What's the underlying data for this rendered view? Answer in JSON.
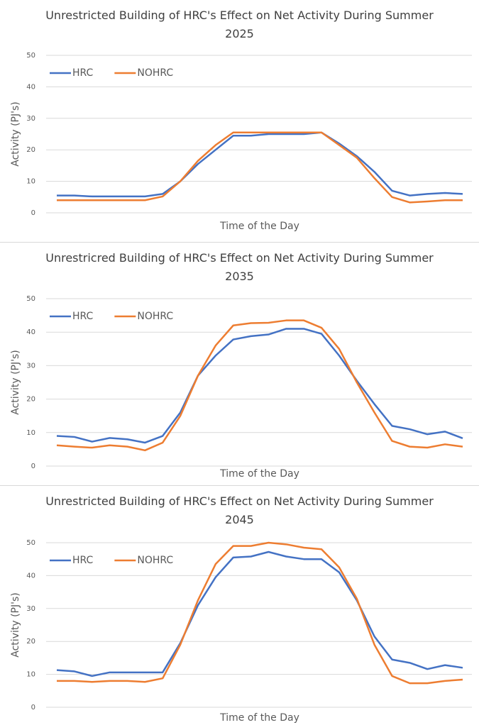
{
  "chart_data": [
    {
      "type": "line",
      "title": "Unrestricted Building of HRC's Effect on Net Activity During Summer 2025",
      "x_label": "Time of the Day",
      "y_label": "Activity  (PJ's)",
      "ylim": [
        0,
        50
      ],
      "yticks": [
        0,
        10,
        20,
        30,
        40,
        50
      ],
      "grid": true,
      "legend": "top-left",
      "series": [
        {
          "name": "HRC",
          "color": "#4472c4",
          "values": [
            5.5,
            5.5,
            5.2,
            5.2,
            5.2,
            5.2,
            6,
            10,
            15.5,
            20,
            24.5,
            24.5,
            25,
            25,
            25,
            25.5,
            22,
            18,
            13,
            7,
            5.5,
            6,
            6.3,
            6
          ]
        },
        {
          "name": "NOHRC",
          "color": "#ed7d31",
          "values": [
            4,
            4,
            4,
            4,
            4,
            4,
            5.2,
            10,
            16.5,
            21.5,
            25.5,
            25.5,
            25.5,
            25.5,
            25.5,
            25.5,
            21.5,
            17.5,
            11,
            5,
            3.3,
            3.6,
            4,
            4
          ]
        }
      ]
    },
    {
      "type": "line",
      "title": "Unrestricred Building of HRC's Effect on Net Activity During Summer 2035",
      "x_label": "Time of the Day",
      "y_label": "Activity (PJ's)",
      "ylim": [
        0,
        50
      ],
      "yticks": [
        0,
        10,
        20,
        30,
        40,
        50
      ],
      "grid": true,
      "legend": "top-left",
      "series": [
        {
          "name": "HRC",
          "color": "#4472c4",
          "values": [
            9,
            8.7,
            7.3,
            8.4,
            8,
            7,
            9,
            16,
            27,
            33,
            37.8,
            38.8,
            39.3,
            41,
            41,
            39.5,
            33,
            25.5,
            18.5,
            12,
            11,
            9.5,
            10.3,
            8.3
          ]
        },
        {
          "name": "NOHRC",
          "color": "#ed7d31",
          "values": [
            6.2,
            5.8,
            5.5,
            6.2,
            5.8,
            4.7,
            7,
            15,
            27,
            36,
            42,
            42.7,
            42.8,
            43.5,
            43.5,
            41.3,
            35,
            25,
            16,
            7.5,
            5.8,
            5.5,
            6.5,
            5.8
          ]
        }
      ]
    },
    {
      "type": "line",
      "title": "Unrestricted Building of HRC's Effect on Net Activity During Summer 2045",
      "x_label": "Time of the Day",
      "y_label": "Activity (PJ's)",
      "ylim": [
        0,
        50
      ],
      "yticks": [
        0,
        10,
        20,
        30,
        40,
        50
      ],
      "grid": true,
      "legend": "top-left",
      "series": [
        {
          "name": "HRC",
          "color": "#4472c4",
          "values": [
            11.3,
            10.9,
            9.5,
            10.6,
            10.6,
            10.6,
            10.6,
            19.5,
            31,
            39.5,
            45.5,
            45.8,
            47.2,
            45.8,
            45,
            45,
            41,
            32.5,
            21.5,
            14.5,
            13.5,
            11.6,
            12.8,
            12
          ]
        },
        {
          "name": "NOHRC",
          "color": "#ed7d31",
          "values": [
            8,
            8,
            7.7,
            8,
            8,
            7.7,
            8.8,
            19,
            32.5,
            43.5,
            49,
            49,
            50,
            49.5,
            48.5,
            48,
            42.5,
            33,
            19,
            9.5,
            7.3,
            7.3,
            8,
            8.4
          ]
        }
      ]
    }
  ]
}
